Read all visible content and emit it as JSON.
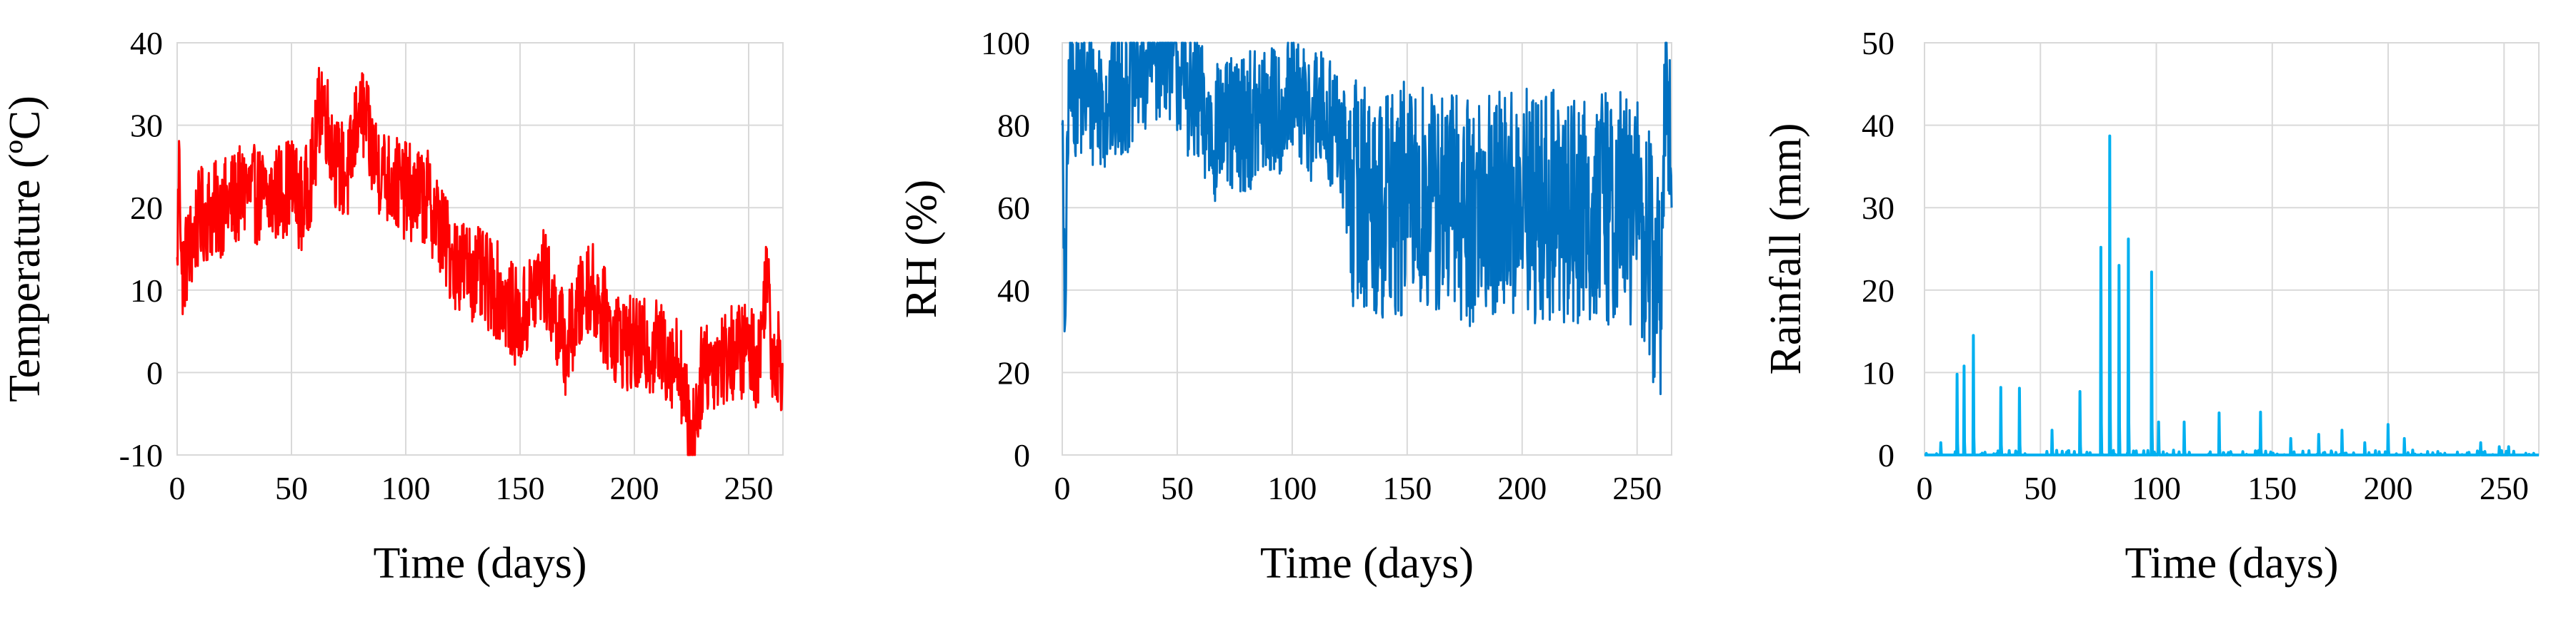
{
  "chart_data": [
    {
      "type": "line",
      "xlabel": "Time (days)",
      "ylabel": "Temperature (ºC)",
      "xlim": [
        0,
        265
      ],
      "ylim": [
        -10,
        40
      ],
      "xticks": [
        "0",
        "50",
        "100",
        "150",
        "200",
        "250"
      ],
      "yticks": [
        "-10",
        "0",
        "10",
        "20",
        "30",
        "40"
      ],
      "grid": true,
      "color": "#ff0000",
      "key_points": {
        "x": [
          0,
          1,
          2,
          10,
          20,
          30,
          40,
          50,
          55,
          60,
          63,
          70,
          75,
          80,
          85,
          90,
          100,
          110,
          120,
          130,
          140,
          150,
          160,
          170,
          180,
          190,
          200,
          210,
          220,
          225,
          230,
          240,
          250,
          255,
          258,
          260,
          265
        ],
        "y": [
          14,
          27,
          12,
          19,
          20,
          22,
          21,
          23,
          20,
          26,
          34,
          25,
          24,
          33,
          27,
          24,
          22,
          21,
          14,
          12,
          10,
          6,
          12,
          3,
          11,
          5,
          3,
          3,
          1,
          -9,
          1,
          2,
          3,
          1,
          15,
          3,
          1
        ]
      }
    },
    {
      "type": "line",
      "xlabel": "Time (days)",
      "ylabel": "RH (%)",
      "xlim": [
        0,
        265
      ],
      "ylim": [
        0,
        100
      ],
      "xticks": [
        "0",
        "50",
        "100",
        "150",
        "200",
        "250"
      ],
      "yticks": [
        "0",
        "20",
        "40",
        "60",
        "80",
        "100"
      ],
      "grid": true,
      "color": "#0070c0",
      "key_points": {
        "x": [
          0,
          1,
          3,
          20,
          45,
          65,
          100,
          120,
          125,
          140,
          150,
          175,
          200,
          250,
          260,
          263,
          265
        ],
        "y": [
          80,
          30,
          90,
          85,
          100,
          78,
          85,
          80,
          65,
          60,
          62,
          60,
          60,
          60,
          40,
          94,
          60
        ]
      }
    },
    {
      "type": "line",
      "xlabel": "Time (days)",
      "ylabel": "Rainfall (mm)",
      "xlim": [
        0,
        265
      ],
      "ylim": [
        0,
        50
      ],
      "xticks": [
        "0",
        "50",
        "100",
        "150",
        "200",
        "250"
      ],
      "yticks": [
        "0",
        "10",
        "20",
        "30",
        "40",
        "50"
      ],
      "grid": true,
      "color": "#00b0f0",
      "peaks": {
        "x": [
          7,
          14,
          17,
          21,
          33,
          41,
          55,
          67,
          76,
          80,
          84,
          88,
          98,
          101,
          112,
          127,
          145,
          158,
          170,
          180,
          190,
          200,
          207,
          240,
          248,
          252
        ],
        "y": [
          1.5,
          9.8,
          10.8,
          14.5,
          8.2,
          8.1,
          3.0,
          7.7,
          25.2,
          38.7,
          23.0,
          26.2,
          22.2,
          4.0,
          4.0,
          5.1,
          5.2,
          2.0,
          2.5,
          3.0,
          1.5,
          3.7,
          2.0,
          1.5,
          1.0,
          1.0
        ]
      }
    }
  ]
}
